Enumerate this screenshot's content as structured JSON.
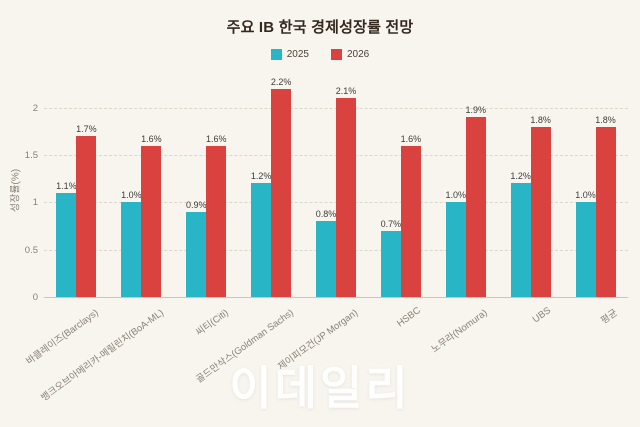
{
  "watermark": "이데일리",
  "colors": {
    "background": "#f7f5ee",
    "series_2025": "#28b5c5",
    "series_2026": "#d9423e",
    "grid": "#dcd7c9",
    "title_text": "#35291f",
    "axis_text": "#8a8076",
    "value_text": "#3c3c3c"
  },
  "chart_data": {
    "type": "bar",
    "title": "주요 IB 한국 경제성장률 전망",
    "xlabel": "",
    "ylabel": "성장률(%)",
    "ylim": [
      0,
      2.24
    ],
    "yticks": [
      0,
      0.5,
      1,
      1.5,
      2
    ],
    "grid": true,
    "legend_position": "top-center",
    "value_label_suffix": "%",
    "categories": [
      "바클레이즈(Barclays)",
      "뱅크오브아메리카-메릴린치(BoA-ML)",
      "씨티(Citi)",
      "골드만삭스(Goldman Sachs)",
      "제이피모건(JP Morgan)",
      "HSBC",
      "노무라(Nomura)",
      "UBS",
      "평균"
    ],
    "series": [
      {
        "name": "2025",
        "color": "#28b5c5",
        "values": [
          1.1,
          1.0,
          0.9,
          1.2,
          0.8,
          0.7,
          1.0,
          1.2,
          1.0
        ]
      },
      {
        "name": "2026",
        "color": "#d9423e",
        "values": [
          1.7,
          1.6,
          1.6,
          2.2,
          2.1,
          1.6,
          1.9,
          1.8,
          1.8
        ]
      }
    ]
  }
}
